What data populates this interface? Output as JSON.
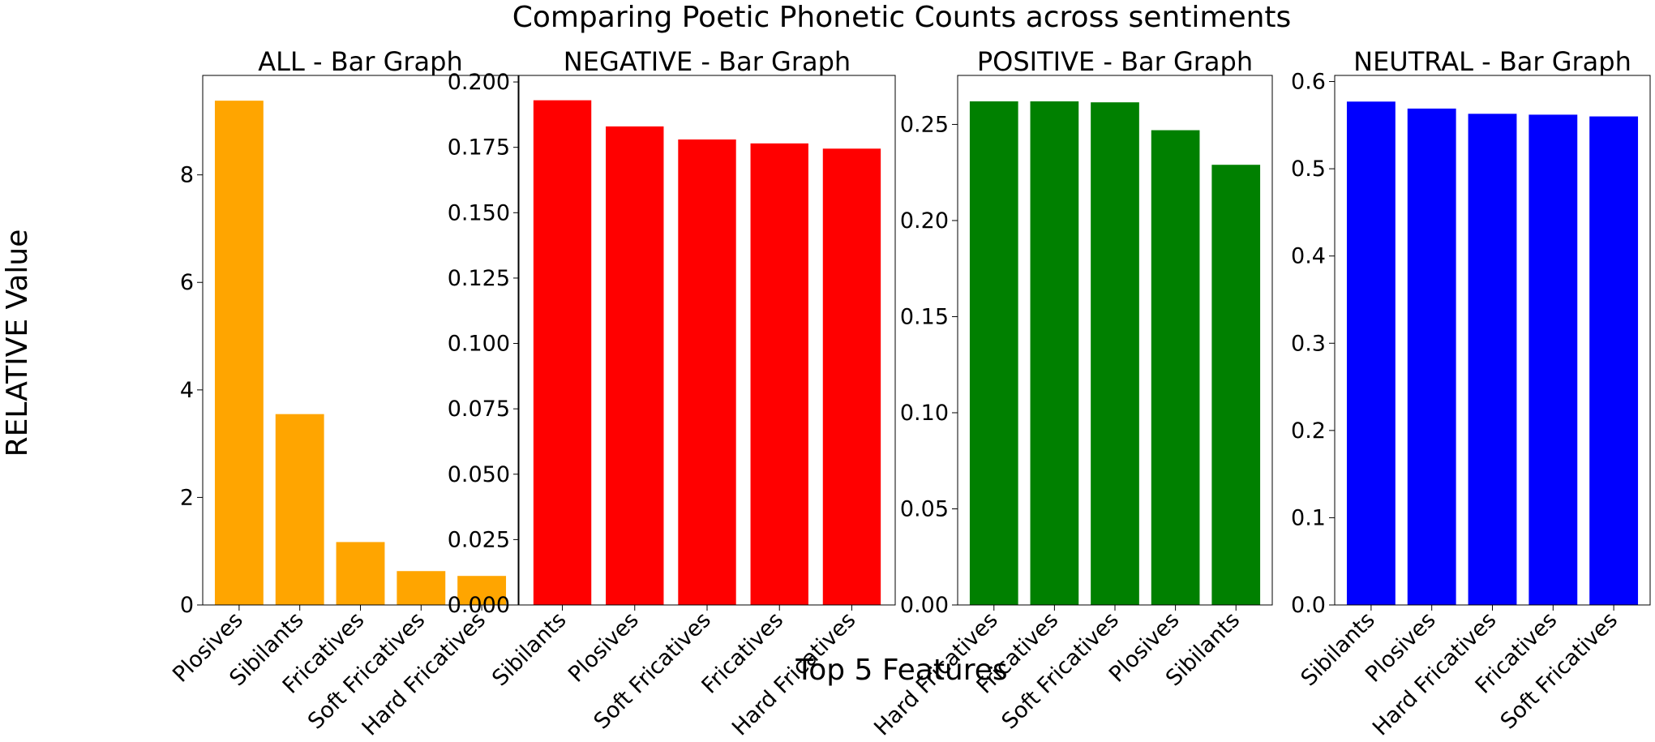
{
  "figure": {
    "title": "Comparing Poetic Phonetic Counts across sentiments",
    "xlabel": "Top 5 Features",
    "ylabel": "RELATIVE Value"
  },
  "chart_data": [
    {
      "type": "bar",
      "title": "ALL - Bar Graph",
      "color": "#ffa500",
      "categories": [
        "Plosives",
        "Sibilants",
        "Fricatives",
        "Soft Fricatives",
        "Hard Fricatives"
      ],
      "values": [
        9.38,
        3.55,
        1.17,
        0.63,
        0.54
      ],
      "ylim": [
        0,
        9.85
      ],
      "yticks": [
        "0",
        "2",
        "4",
        "6",
        "8"
      ],
      "ytick_values": [
        0,
        2,
        4,
        6,
        8
      ]
    },
    {
      "type": "bar",
      "title": "NEGATIVE - Bar Graph",
      "color": "#ff0000",
      "categories": [
        "Sibilants",
        "Plosives",
        "Soft Fricatives",
        "Fricatives",
        "Hard Fricatives"
      ],
      "values": [
        0.193,
        0.183,
        0.178,
        0.1765,
        0.1745
      ],
      "ylim": [
        0,
        0.2025
      ],
      "yticks": [
        "0.000",
        "0.025",
        "0.050",
        "0.075",
        "0.100",
        "0.125",
        "0.150",
        "0.175",
        "0.200"
      ],
      "ytick_values": [
        0,
        0.025,
        0.05,
        0.075,
        0.1,
        0.125,
        0.15,
        0.175,
        0.2
      ]
    },
    {
      "type": "bar",
      "title": "POSITIVE - Bar Graph",
      "color": "#008000",
      "categories": [
        "Hard Fricatives",
        "Fricatives",
        "Soft Fricatives",
        "Plosives",
        "Sibilants"
      ],
      "values": [
        0.262,
        0.262,
        0.2615,
        0.247,
        0.229
      ],
      "ylim": [
        0,
        0.2755
      ],
      "yticks": [
        "0.00",
        "0.05",
        "0.10",
        "0.15",
        "0.20",
        "0.25"
      ],
      "ytick_values": [
        0,
        0.05,
        0.1,
        0.15,
        0.2,
        0.25
      ]
    },
    {
      "type": "bar",
      "title": "NEUTRAL - Bar Graph",
      "color": "#0000ff",
      "categories": [
        "Sibilants",
        "Plosives",
        "Hard Fricatives",
        "Fricatives",
        "Soft Fricatives"
      ],
      "values": [
        0.577,
        0.569,
        0.563,
        0.562,
        0.56
      ],
      "ylim": [
        0,
        0.607
      ],
      "yticks": [
        "0.0",
        "0.1",
        "0.2",
        "0.3",
        "0.4",
        "0.5",
        "0.6"
      ],
      "ytick_values": [
        0,
        0.1,
        0.2,
        0.3,
        0.4,
        0.5,
        0.6
      ]
    }
  ]
}
